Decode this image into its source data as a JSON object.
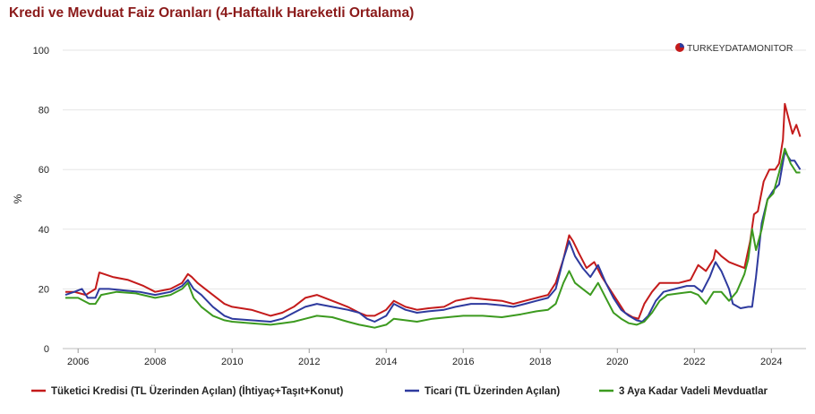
{
  "chart_data": {
    "type": "line",
    "title": "Kredi ve Mevduat Faiz Oranları (4-Haftalık Hareketli Ortalama)",
    "ylabel": "%",
    "xlabel": "",
    "xlim": [
      2005.6,
      2024.9
    ],
    "ylim": [
      0,
      100
    ],
    "yticks": [
      0,
      20,
      40,
      60,
      80,
      100
    ],
    "xticks": [
      2006,
      2008,
      2010,
      2012,
      2014,
      2016,
      2018,
      2020,
      2022,
      2024
    ],
    "grid": "horizontal",
    "legend_position": "bottom",
    "logo": "TURKEYDATAMONITOR",
    "series": [
      {
        "name": "Tüketici Kredisi (TL Üzerinden Açılan) (İhtiyaç+Taşıt+Konut)",
        "color": "#c41b1b",
        "x": [
          2005.67,
          2005.9,
          2006.2,
          2006.45,
          2006.55,
          2006.9,
          2007.3,
          2007.7,
          2008.0,
          2008.4,
          2008.7,
          2008.85,
          2008.95,
          2009.1,
          2009.3,
          2009.6,
          2009.8,
          2010.0,
          2010.5,
          2011.0,
          2011.3,
          2011.6,
          2011.9,
          2012.2,
          2012.6,
          2013.0,
          2013.3,
          2013.5,
          2013.7,
          2014.0,
          2014.2,
          2014.5,
          2014.8,
          2015.1,
          2015.5,
          2015.8,
          2016.2,
          2016.6,
          2017.0,
          2017.3,
          2017.6,
          2017.9,
          2018.2,
          2018.4,
          2018.6,
          2018.75,
          2018.85,
          2019.0,
          2019.2,
          2019.4,
          2019.6,
          2019.8,
          2020.0,
          2020.2,
          2020.4,
          2020.55,
          2020.7,
          2020.9,
          2021.1,
          2021.3,
          2021.6,
          2021.9,
          2022.1,
          2022.3,
          2022.5,
          2022.55,
          2022.7,
          2022.9,
          2023.1,
          2023.3,
          2023.45,
          2023.55,
          2023.65,
          2023.8,
          2023.95,
          2024.1,
          2024.2,
          2024.3,
          2024.35,
          2024.45,
          2024.55,
          2024.65,
          2024.75
        ],
        "values": [
          19,
          19,
          18,
          20,
          25.5,
          24,
          23,
          21,
          19,
          20,
          22,
          25,
          24,
          22,
          20,
          17,
          15,
          14,
          13,
          11,
          12,
          14,
          17,
          18,
          16,
          14,
          12,
          11,
          11,
          13,
          16,
          14,
          13,
          13.5,
          14,
          16,
          17,
          16.5,
          16,
          15,
          16,
          17,
          18,
          22,
          30,
          38,
          36,
          32,
          27,
          29,
          24,
          20,
          16,
          12,
          10.5,
          10,
          15,
          19,
          22,
          22,
          22,
          23,
          28,
          26,
          30,
          33,
          31,
          29,
          28,
          27,
          36,
          45,
          46,
          56,
          60,
          60,
          62,
          70,
          82,
          77,
          72,
          75,
          71
        ]
      },
      {
        "name": "Ticari (TL Üzerinden Açılan)",
        "color": "#2e3a9e",
        "x": [
          2005.67,
          2005.9,
          2006.1,
          2006.25,
          2006.45,
          2006.55,
          2006.8,
          2007.2,
          2007.6,
          2008.0,
          2008.4,
          2008.7,
          2008.85,
          2009.0,
          2009.2,
          2009.5,
          2009.8,
          2010.0,
          2010.5,
          2011.0,
          2011.3,
          2011.6,
          2011.9,
          2012.2,
          2012.6,
          2013.0,
          2013.3,
          2013.5,
          2013.7,
          2014.0,
          2014.2,
          2014.5,
          2014.8,
          2015.1,
          2015.5,
          2015.8,
          2016.2,
          2016.6,
          2017.0,
          2017.3,
          2017.6,
          2017.9,
          2018.2,
          2018.4,
          2018.6,
          2018.75,
          2018.9,
          2019.1,
          2019.3,
          2019.5,
          2019.7,
          2019.9,
          2020.1,
          2020.3,
          2020.5,
          2020.65,
          2020.8,
          2021.0,
          2021.2,
          2021.5,
          2021.8,
          2022.0,
          2022.2,
          2022.4,
          2022.55,
          2022.7,
          2022.9,
          2023.0,
          2023.2,
          2023.4,
          2023.5,
          2023.6,
          2023.75,
          2023.9,
          2024.05,
          2024.2,
          2024.35,
          2024.5,
          2024.6,
          2024.75
        ],
        "values": [
          18,
          19,
          20,
          17,
          17,
          20,
          20,
          19.5,
          19,
          18,
          19,
          21,
          23,
          20,
          18,
          14,
          11,
          10,
          9.5,
          9,
          10,
          12,
          14,
          15,
          14,
          13,
          12,
          10,
          9,
          11,
          15,
          13,
          12,
          12.5,
          13,
          14,
          15,
          15,
          14.5,
          14,
          15,
          16,
          17,
          20,
          30,
          36,
          31,
          27,
          24,
          28,
          22,
          17,
          13,
          11,
          9.5,
          9,
          11,
          16,
          19,
          20,
          21,
          21,
          19,
          24,
          29,
          26,
          20,
          15,
          13.5,
          14,
          14,
          24,
          42,
          50,
          53,
          55,
          66,
          63,
          63,
          60
        ]
      },
      {
        "name": "3 Aya Kadar Vadeli Mevduatlar",
        "color": "#3c9a1f",
        "x": [
          2005.67,
          2006.0,
          2006.3,
          2006.45,
          2006.6,
          2007.0,
          2007.5,
          2008.0,
          2008.4,
          2008.7,
          2008.85,
          2009.0,
          2009.2,
          2009.5,
          2009.8,
          2010.0,
          2010.5,
          2011.0,
          2011.3,
          2011.6,
          2011.9,
          2012.2,
          2012.6,
          2013.0,
          2013.3,
          2013.5,
          2013.7,
          2014.0,
          2014.2,
          2014.5,
          2014.8,
          2015.2,
          2015.6,
          2016.0,
          2016.5,
          2017.0,
          2017.5,
          2017.9,
          2018.2,
          2018.4,
          2018.6,
          2018.75,
          2018.9,
          2019.1,
          2019.3,
          2019.5,
          2019.7,
          2019.9,
          2020.1,
          2020.3,
          2020.5,
          2020.7,
          2020.9,
          2021.1,
          2021.3,
          2021.6,
          2021.9,
          2022.1,
          2022.3,
          2022.5,
          2022.7,
          2022.9,
          2023.1,
          2023.3,
          2023.4,
          2023.5,
          2023.6,
          2023.75,
          2023.9,
          2024.05,
          2024.2,
          2024.35,
          2024.5,
          2024.65,
          2024.75
        ],
        "values": [
          17,
          17,
          15,
          15,
          18,
          19,
          18.5,
          17,
          18,
          20,
          22,
          17,
          14,
          11,
          9.5,
          9,
          8.5,
          8,
          8.5,
          9,
          10,
          11,
          10.5,
          9,
          8,
          7.5,
          7,
          8,
          10,
          9.5,
          9,
          10,
          10.5,
          11,
          11,
          10.5,
          11.5,
          12.5,
          13,
          15,
          22,
          26,
          22,
          20,
          18,
          22,
          17,
          12,
          10,
          8.5,
          8,
          9,
          12,
          16,
          18,
          18.5,
          19,
          18,
          15,
          19,
          19,
          16,
          19,
          25,
          30,
          40,
          33,
          40,
          50,
          52,
          59,
          67,
          62,
          59,
          59
        ]
      }
    ]
  }
}
